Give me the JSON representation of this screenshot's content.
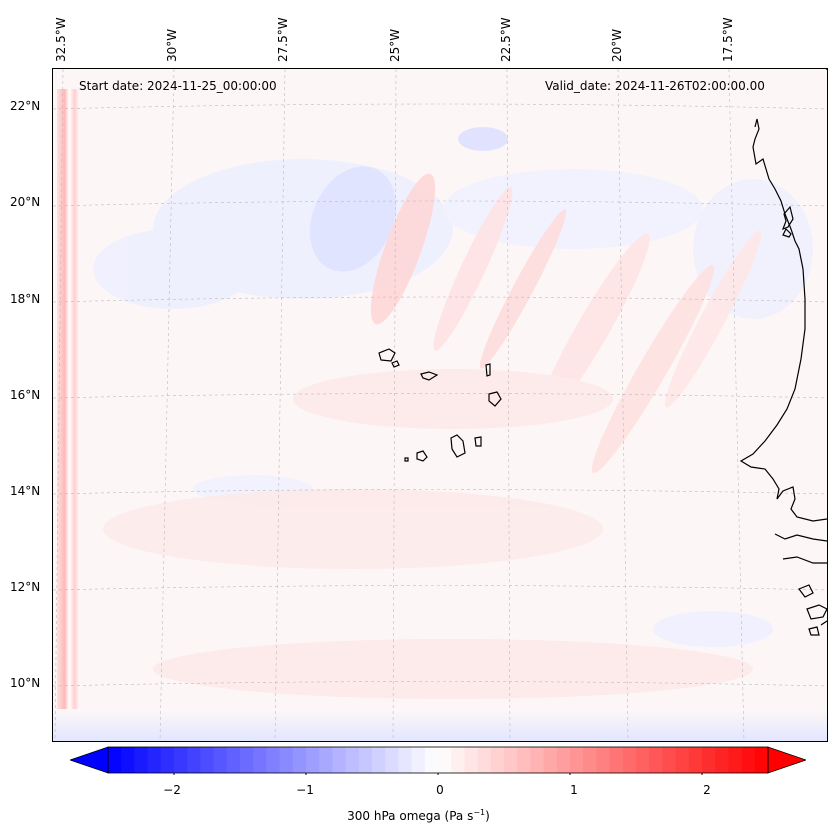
{
  "map": {
    "header_left": "Start date: 2024-11-25_00:00:00",
    "header_right": "Valid_date: 2024-11-26T02:00:00.00",
    "lon_labels": [
      "32.5°W",
      "30°W",
      "27.5°W",
      "25°W",
      "22.5°W",
      "20°W",
      "17.5°W"
    ],
    "lat_labels": [
      "22°N",
      "20°N",
      "18°N",
      "16°N",
      "14°N",
      "12°N",
      "10°N"
    ],
    "field": "300 hPa omega",
    "extent": {
      "lon_min": -33.0,
      "lon_max": -16.0,
      "lat_min": 8.9,
      "lat_max": 22.8
    },
    "features": [
      "West African coastline",
      "Cape Verde islands"
    ]
  },
  "colorbar": {
    "tick_labels": [
      "−2",
      "−1",
      "0",
      "1",
      "2"
    ],
    "ticks": [
      -2,
      -1,
      0,
      1,
      2
    ],
    "range": [
      -2.5,
      2.5
    ],
    "label_main": "300 hPa omega (Pa s",
    "label_sup": "−1",
    "label_end": ")",
    "colormap": "bwr",
    "colors": {
      "neg": "#0000ff",
      "zero": "#ffffff",
      "pos": "#ff0000"
    }
  }
}
